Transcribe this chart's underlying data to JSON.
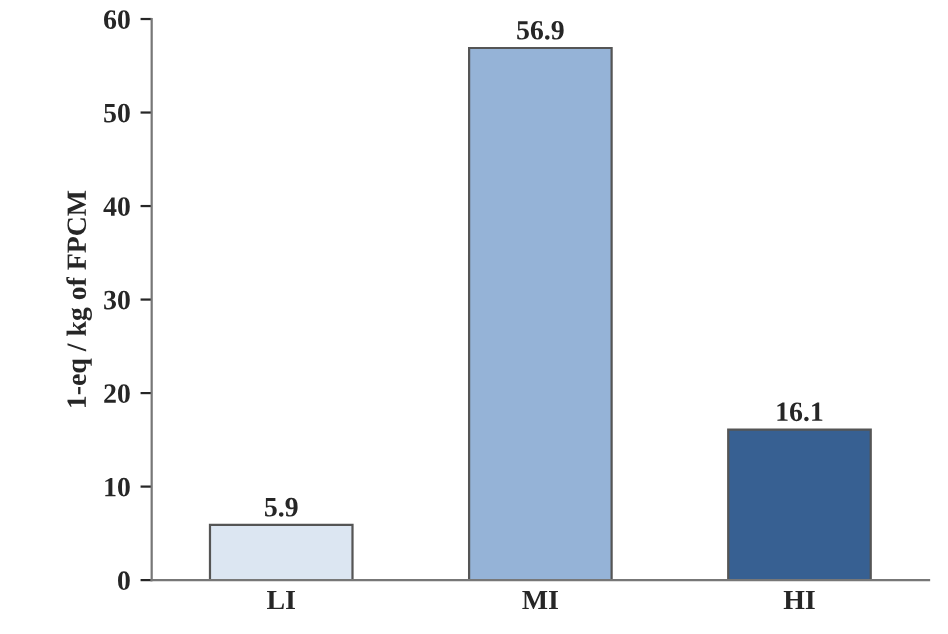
{
  "chart_data": {
    "type": "bar",
    "ylabel": "1-eq / kg of FPCM",
    "categories": [
      "LI",
      "MI",
      "HI"
    ],
    "values": [
      5.9,
      56.9,
      16.1
    ],
    "colors": [
      "#dce6f2",
      "#95b3d7",
      "#376092"
    ],
    "ylim": [
      0,
      60
    ],
    "yticks": [
      0,
      10,
      20,
      30,
      40,
      50,
      60
    ],
    "data_labels": true,
    "grid": false,
    "legend": false
  }
}
